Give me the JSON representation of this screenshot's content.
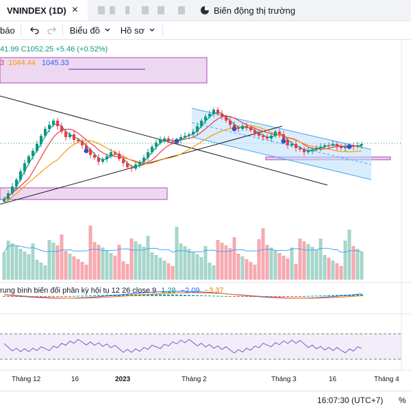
{
  "tabbar": {
    "tab_title": "VNINDEX (1D)",
    "close_symbol": "×",
    "right_tab_label": "Biến động thị trường"
  },
  "toolbar": {
    "report_label": "báo",
    "chart_label": "Biểu đồ",
    "profile_label": "Hồ sơ"
  },
  "legend": {
    "ohlc_tail": "41.99",
    "close_label": "C1052.25",
    "change": "+5.46 (+0.52%)",
    "ma_prefix": "3",
    "ma_val1": "1044.44",
    "ma_val2": "1045.33"
  },
  "macd": {
    "label": "rung bình biến đổi phân kỳ hội tụ 12 26 close 9",
    "v1": "1.28",
    "v2": "−2.09",
    "v3": "−3.37"
  },
  "xaxis": {
    "labels": [
      "Tháng 12",
      "16",
      "2023",
      "Tháng 2",
      "Tháng 3",
      "16",
      "Tháng 4"
    ]
  },
  "bottombar": {
    "time": "16:07:30 (UTC+7)",
    "percent": "%"
  },
  "colors": {
    "up": "#089981",
    "down": "#f23645",
    "volume_up": "#a5d6c9",
    "volume_down": "#f7a9b0",
    "highlight": "#e1bee7",
    "channel": "#bbdefb"
  }
}
